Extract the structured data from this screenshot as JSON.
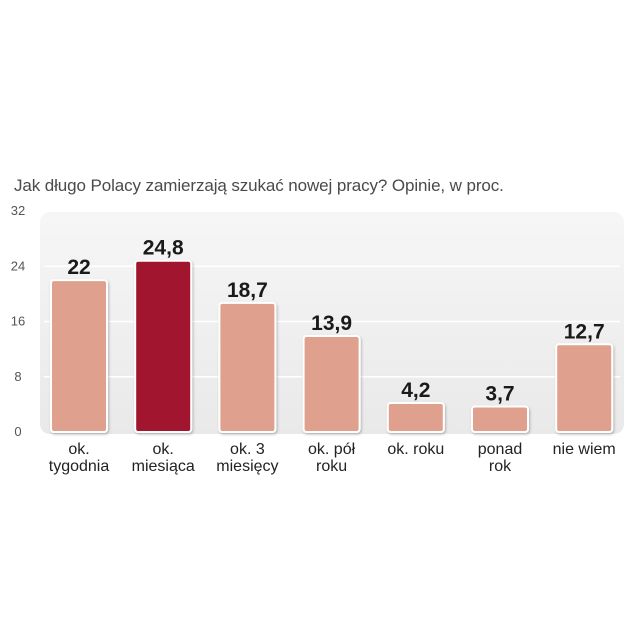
{
  "chart_data": {
    "type": "bar",
    "title": "Jak długo Polacy zamierzają szukać nowej pracy? Opinie, w proc.",
    "categories": [
      [
        "ok.",
        "tygodnia"
      ],
      [
        "ok.",
        "miesiąca"
      ],
      [
        "ok. 3",
        "miesięcy"
      ],
      [
        "ok. pół",
        "roku"
      ],
      [
        "ok. roku"
      ],
      [
        "ponad",
        "rok"
      ],
      [
        "nie wiem"
      ]
    ],
    "values": [
      22,
      24.8,
      18.7,
      13.9,
      4.2,
      3.7,
      12.7
    ],
    "value_labels": [
      "22",
      "24,8",
      "18,7",
      "13,9",
      "4,2",
      "3,7",
      "12,7"
    ],
    "highlight_index": 1,
    "ylim": [
      0,
      32
    ],
    "yticks": [
      "0",
      "8",
      "16",
      "24",
      "32"
    ],
    "grid": true,
    "colors": {
      "bar": "#dfa08d",
      "highlight": "#a1122d",
      "bar_stroke": "#ffffff",
      "panel": "#eeeeee",
      "grid": "#ffffff"
    }
  }
}
